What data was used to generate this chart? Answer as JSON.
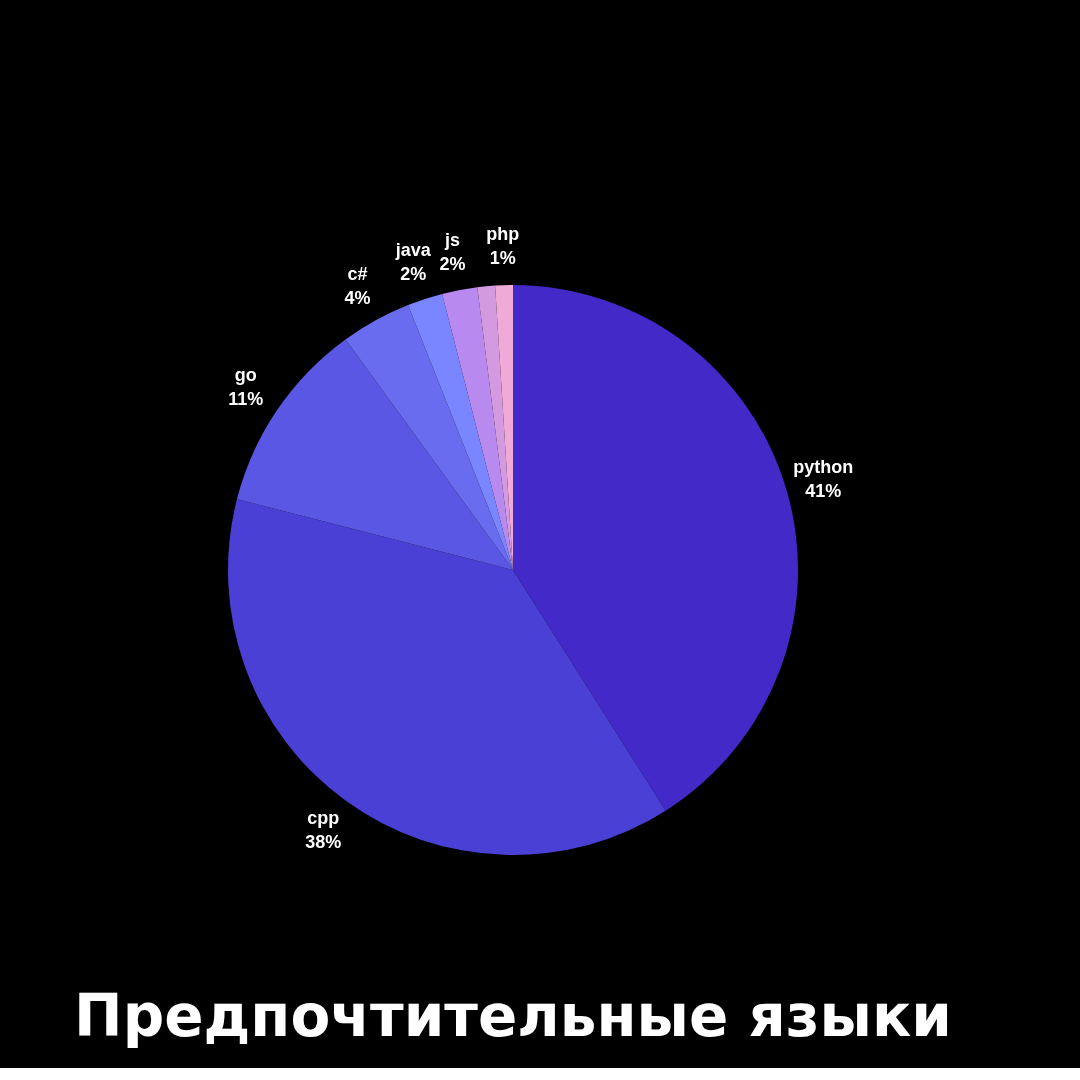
{
  "chart_data": {
    "type": "pie",
    "title": "Предпочтительные языки",
    "categories": [
      "python",
      "cpp",
      "go",
      "c#",
      "java",
      "js",
      null,
      "php"
    ],
    "values": [
      41,
      38,
      11,
      4,
      2,
      2,
      1,
      1
    ],
    "colors": [
      "#4229c8",
      "#4b40d6",
      "#5a57e4",
      "#6a6cf0",
      "#7a86ff",
      "#b88af0",
      "#d49ae0",
      "#f0aad8"
    ],
    "value_labels": [
      "41%",
      "38%",
      "11%",
      "4%",
      "2%",
      "2%",
      null,
      "1%"
    ]
  }
}
